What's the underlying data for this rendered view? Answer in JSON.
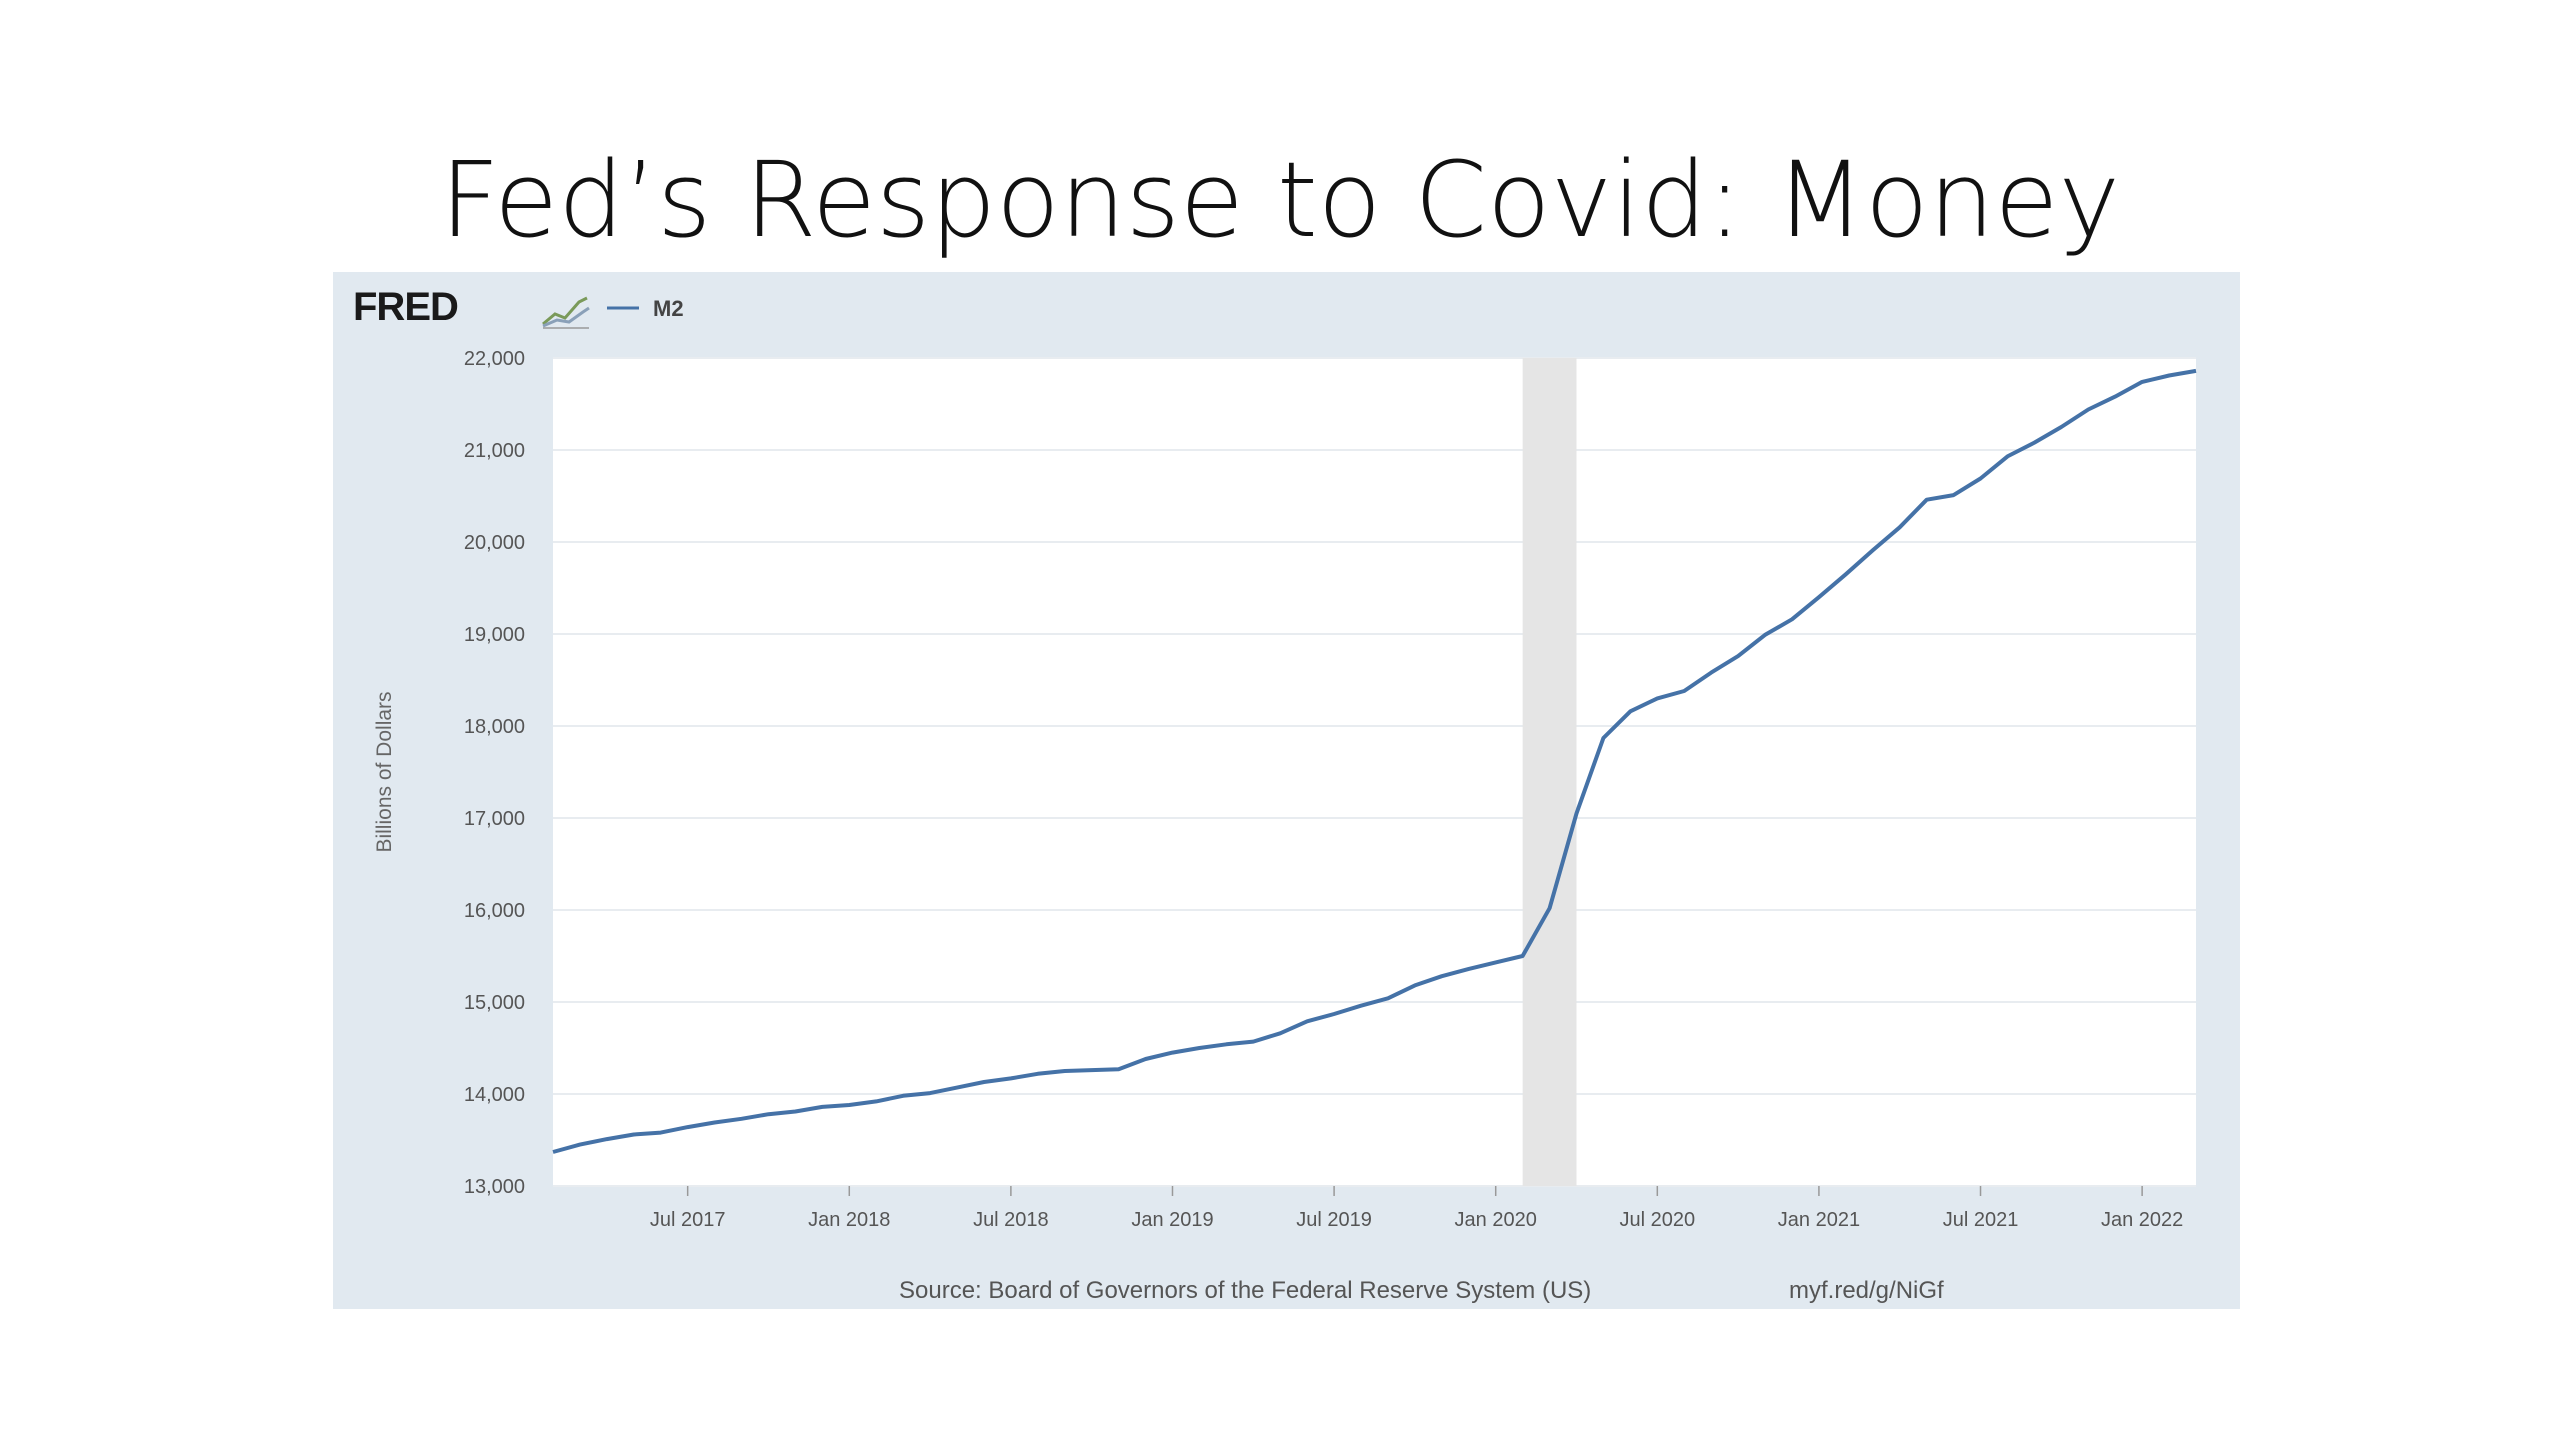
{
  "slide": {
    "title": "Fed’s Response to Covid: Money"
  },
  "brand": {
    "logo_text": "FRED",
    "logo_icon": "fred-chart-icon"
  },
  "colors": {
    "frame_bg": "#e1e9f0",
    "plot_bg": "#ffffff",
    "line": "#4572a7",
    "recession": "#e5e5e5",
    "grid": "#e8ecf0"
  },
  "footer": {
    "source": "Source: Board of Governors of the Federal Reserve System (US)",
    "link": "myf.red/g/NiGf"
  },
  "chart_data": {
    "type": "line",
    "title": "",
    "xlabel": "",
    "ylabel": "Billions of Dollars",
    "ylim": [
      13000,
      22000
    ],
    "yticks": [
      13000,
      14000,
      15000,
      16000,
      17000,
      18000,
      19000,
      20000,
      21000,
      22000
    ],
    "ytick_labels": [
      "13,000",
      "14,000",
      "15,000",
      "16,000",
      "17,000",
      "18,000",
      "19,000",
      "20,000",
      "21,000",
      "22,000"
    ],
    "xlim": [
      "2017-02",
      "2022-03"
    ],
    "xticks": [
      "2017-07",
      "2018-01",
      "2018-07",
      "2019-01",
      "2019-07",
      "2020-01",
      "2020-07",
      "2021-01",
      "2021-07",
      "2022-01"
    ],
    "xtick_labels": [
      "Jul 2017",
      "Jan 2018",
      "Jul 2018",
      "Jan 2019",
      "Jul 2019",
      "Jan 2020",
      "Jul 2020",
      "Jan 2021",
      "Jul 2021",
      "Jan 2022"
    ],
    "legend": {
      "position": "top-left",
      "entries": [
        "M2"
      ]
    },
    "grid": true,
    "recession": {
      "start": "2020-02",
      "end": "2020-04"
    },
    "series": [
      {
        "name": "M2",
        "x": [
          "2017-02",
          "2017-03",
          "2017-04",
          "2017-05",
          "2017-06",
          "2017-07",
          "2017-08",
          "2017-09",
          "2017-10",
          "2017-11",
          "2017-12",
          "2018-01",
          "2018-02",
          "2018-03",
          "2018-04",
          "2018-05",
          "2018-06",
          "2018-07",
          "2018-08",
          "2018-09",
          "2018-10",
          "2018-11",
          "2018-12",
          "2019-01",
          "2019-02",
          "2019-03",
          "2019-04",
          "2019-05",
          "2019-06",
          "2019-07",
          "2019-08",
          "2019-09",
          "2019-10",
          "2019-11",
          "2019-12",
          "2020-01",
          "2020-02",
          "2020-03",
          "2020-04",
          "2020-05",
          "2020-06",
          "2020-07",
          "2020-08",
          "2020-09",
          "2020-10",
          "2020-11",
          "2020-12",
          "2021-01",
          "2021-02",
          "2021-03",
          "2021-04",
          "2021-05",
          "2021-06",
          "2021-07",
          "2021-08",
          "2021-09",
          "2021-10",
          "2021-11",
          "2021-12",
          "2022-01",
          "2022-02",
          "2022-03"
        ],
        "values": [
          13370,
          13450,
          13510,
          13560,
          13580,
          13640,
          13690,
          13730,
          13780,
          13810,
          13860,
          13880,
          13920,
          13980,
          14010,
          14070,
          14130,
          14170,
          14220,
          14250,
          14260,
          14270,
          14380,
          14450,
          14500,
          14540,
          14570,
          14660,
          14790,
          14870,
          14960,
          15040,
          15180,
          15280,
          15360,
          15430,
          15500,
          16020,
          17050,
          17870,
          18160,
          18300,
          18380,
          18580,
          18760,
          18990,
          19160,
          19400,
          19650,
          19910,
          20160,
          20460,
          20510,
          20690,
          20930,
          21080,
          21250,
          21440,
          21580,
          21740,
          21810,
          21860
        ]
      }
    ]
  }
}
